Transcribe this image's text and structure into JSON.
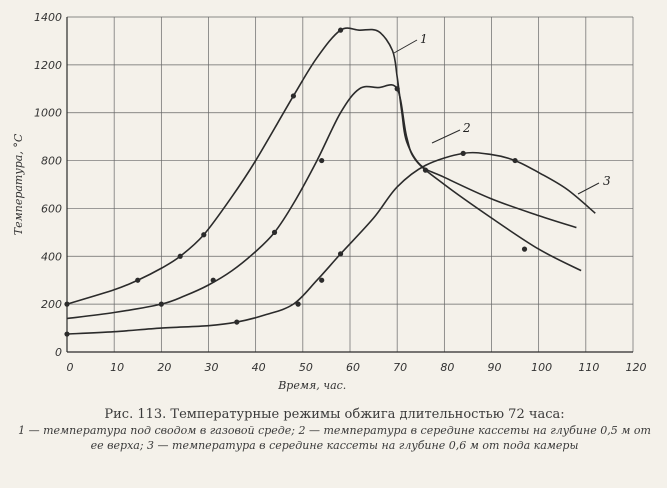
{
  "chart_data": {
    "type": "line",
    "xlabel": "Время, час.",
    "ylabel": "Температура, °С",
    "xlim": [
      0,
      120
    ],
    "ylim": [
      0,
      1400
    ],
    "xticks": [
      0,
      10,
      20,
      30,
      40,
      50,
      60,
      70,
      80,
      90,
      100,
      110,
      120
    ],
    "yticks": [
      0,
      200,
      400,
      600,
      800,
      1000,
      1200,
      1400
    ],
    "grid": true,
    "series": [
      {
        "name": "1",
        "x": [
          0,
          10,
          15,
          20,
          24,
          29,
          35,
          40,
          48,
          53,
          58,
          62,
          66,
          69,
          70,
          71,
          72,
          75,
          80,
          90,
          100,
          108
        ],
        "y": [
          200,
          260,
          300,
          350,
          400,
          490,
          650,
          800,
          1070,
          1230,
          1345,
          1345,
          1340,
          1260,
          1150,
          1000,
          880,
          780,
          730,
          640,
          570,
          520
        ],
        "markers_x": [
          0,
          15,
          24,
          29,
          48,
          58
        ],
        "markers_y": [
          200,
          300,
          400,
          490,
          1070,
          1345
        ]
      },
      {
        "name": "2",
        "x": [
          0,
          10,
          20,
          25,
          30,
          35,
          40,
          44,
          48,
          53,
          58,
          62,
          66,
          70,
          72,
          74,
          80,
          90,
          100,
          109
        ],
        "y": [
          140,
          165,
          200,
          235,
          280,
          340,
          420,
          500,
          620,
          800,
          1000,
          1100,
          1105,
          1100,
          900,
          800,
          700,
          560,
          430,
          340
        ],
        "markers_x": [
          20,
          31,
          44,
          54,
          70,
          97
        ],
        "markers_y": [
          200,
          300,
          500,
          800,
          1100,
          430
        ]
      },
      {
        "name": "3",
        "x": [
          0,
          10,
          20,
          30,
          36,
          42,
          48,
          53,
          58,
          65,
          70,
          76,
          84,
          90,
          95,
          100,
          106,
          112
        ],
        "y": [
          75,
          85,
          100,
          110,
          125,
          155,
          200,
          300,
          410,
          560,
          690,
          780,
          830,
          825,
          800,
          750,
          680,
          580
        ],
        "markers_x": [
          0,
          36,
          49,
          54,
          58,
          76,
          84,
          95
        ],
        "markers_y": [
          75,
          125,
          200,
          300,
          410,
          760,
          830,
          800
        ]
      }
    ]
  },
  "caption": {
    "title": "Рис. 113. Температурные режимы обжига длительностью 72 часа:",
    "text": "1 — температура под сводом в газовой среде; 2 — температура в середине кассеты на глубине 0,5 м от ее верха; 3 — температура в середине кассеты на глубине 0,6 м от пода камеры"
  }
}
